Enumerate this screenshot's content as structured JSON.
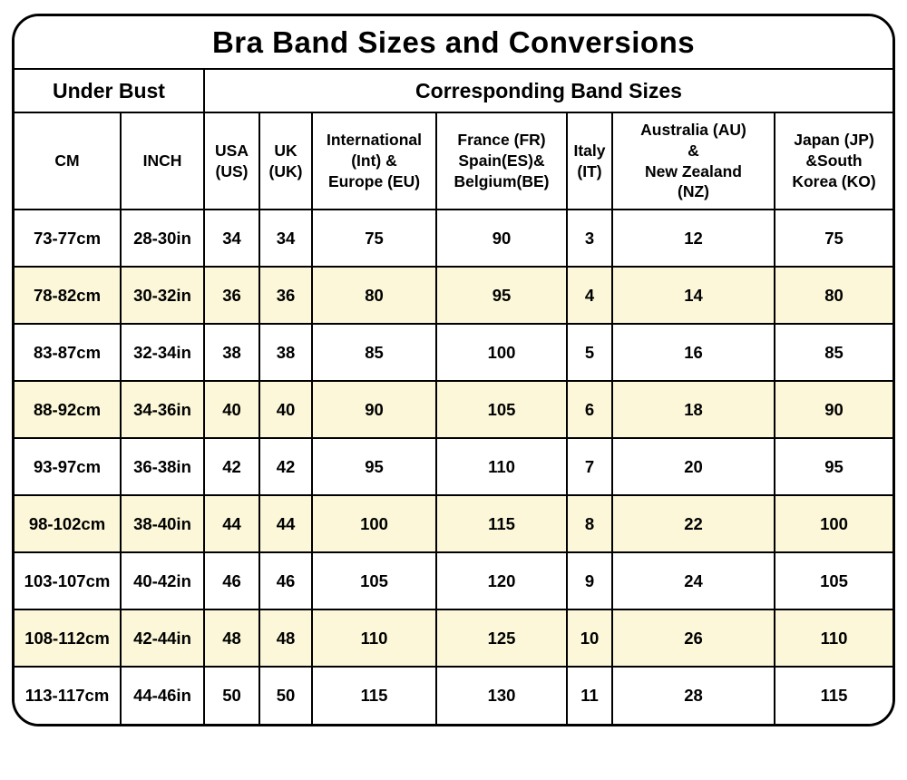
{
  "table": {
    "title": "Bra Band Sizes and Conversions",
    "group_headers": {
      "under_bust": "Under Bust",
      "corresponding": "Corresponding Band Sizes"
    },
    "columns": [
      "CM",
      "INCH",
      "USA\n(US)",
      "UK\n(UK)",
      "International\n(Int) &\nEurope (EU)",
      "France (FR)\nSpain(ES)&\nBelgium(BE)",
      "Italy\n(IT)",
      "Australia (AU)\n&\nNew Zealand\n(NZ)",
      "Japan (JP)\n&South\nKorea (KO)"
    ],
    "rows": [
      [
        "73-77cm",
        "28-30in",
        "34",
        "34",
        "75",
        "90",
        "3",
        "12",
        "75"
      ],
      [
        "78-82cm",
        "30-32in",
        "36",
        "36",
        "80",
        "95",
        "4",
        "14",
        "80"
      ],
      [
        "83-87cm",
        "32-34in",
        "38",
        "38",
        "85",
        "100",
        "5",
        "16",
        "85"
      ],
      [
        "88-92cm",
        "34-36in",
        "40",
        "40",
        "90",
        "105",
        "6",
        "18",
        "90"
      ],
      [
        "93-97cm",
        "36-38in",
        "42",
        "42",
        "95",
        "110",
        "7",
        "20",
        "95"
      ],
      [
        "98-102cm",
        "38-40in",
        "44",
        "44",
        "100",
        "115",
        "8",
        "22",
        "100"
      ],
      [
        "103-107cm",
        "40-42in",
        "46",
        "46",
        "105",
        "120",
        "9",
        "24",
        "105"
      ],
      [
        "108-112cm",
        "42-44in",
        "48",
        "48",
        "110",
        "125",
        "10",
        "26",
        "110"
      ],
      [
        "113-117cm",
        "44-46in",
        "50",
        "50",
        "115",
        "130",
        "11",
        "28",
        "115"
      ]
    ],
    "colors": {
      "stripe_bg": "#fbf7d8",
      "title_bg": "#fbf7d8",
      "border": "#000000",
      "page_bg": "#ffffff",
      "text": "#000000"
    }
  }
}
